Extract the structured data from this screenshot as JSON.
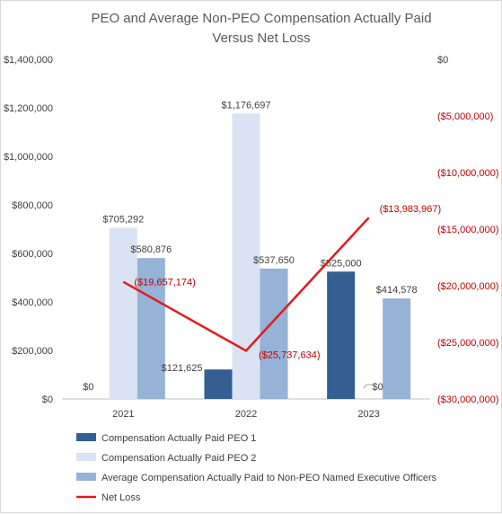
{
  "chart_data": {
    "type": "bar",
    "title_lines": [
      "PEO and Average Non-PEO Compensation Actually Paid",
      "Versus Net Loss"
    ],
    "categories": [
      "2021",
      "2022",
      "2023"
    ],
    "series": [
      {
        "name": "Compensation Actually Paid PEO 1",
        "color": "#355e93",
        "values": [
          0,
          121625,
          525000
        ],
        "labels": [
          "$0",
          "$121,625",
          "$525,000"
        ]
      },
      {
        "name": "Compensation Actually Paid PEO 2",
        "color": "#dae3f3",
        "values": [
          705292,
          1176697,
          0
        ],
        "labels": [
          "$705,292",
          "$1,176,697",
          "$0"
        ]
      },
      {
        "name": "Average Compensation Actually Paid to Non-PEO Named Executive Officers",
        "color": "#95b3d7",
        "values": [
          580876,
          537650,
          414578
        ],
        "labels": [
          "$580,876",
          "$537,650",
          "$414,578"
        ]
      }
    ],
    "line_series": {
      "name": "Net Loss",
      "color": "#e31a1c",
      "axis": "right",
      "values": [
        -19657174,
        -25737634,
        -13983967
      ],
      "labels": [
        "($19,657,174)",
        "($25,737,634)",
        "($13,983,967)"
      ]
    },
    "y_left": {
      "min": 0,
      "max": 1400000,
      "ticks": [
        "$0",
        "$200,000",
        "$400,000",
        "$600,000",
        "$800,000",
        "$1,000,000",
        "$1,200,000",
        "$1,400,000"
      ]
    },
    "y_right": {
      "min": -30000000,
      "max": 0,
      "ticks": [
        "$0",
        "($5,000,000)",
        "($10,000,000)",
        "($15,000,000)",
        "($20,000,000)",
        "($25,000,000)",
        "($30,000,000)"
      ]
    },
    "grid": false,
    "legend_position": "bottom-left"
  }
}
